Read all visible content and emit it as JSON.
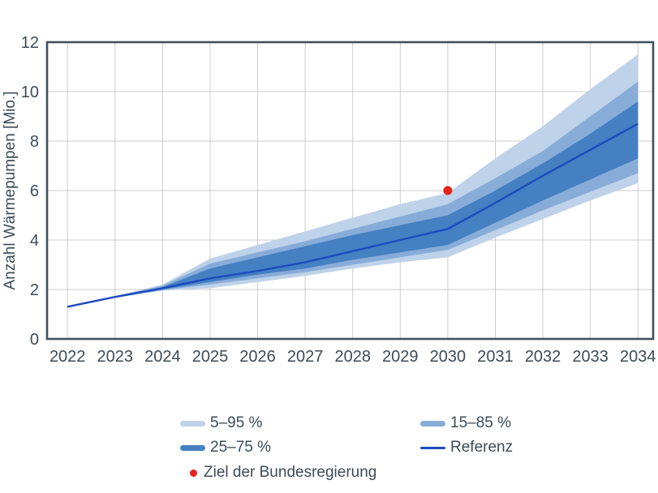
{
  "chart_data": {
    "type": "area",
    "subtype": "fan-chart",
    "title": "",
    "xlabel": "",
    "ylabel": "Anzahl Wärmepumpen [Mio.]",
    "x": [
      2022,
      2023,
      2024,
      2025,
      2026,
      2027,
      2028,
      2029,
      2030,
      2031,
      2032,
      2033,
      2034
    ],
    "x_tick_labels": [
      "2022",
      "2023",
      "2024",
      "2025",
      "2026",
      "2027",
      "2028",
      "2029",
      "2030",
      "2031",
      "2032",
      "2033",
      "2034"
    ],
    "y_ticks": [
      0,
      2,
      4,
      6,
      8,
      10,
      12
    ],
    "xlim": [
      2021.57,
      2034.32
    ],
    "ylim": [
      0,
      12
    ],
    "grid": true,
    "legend_position": "bottom",
    "bands": [
      {
        "name": "5–95 %",
        "color": "#bed2e9",
        "upper": [
          1.3,
          1.73,
          2.2,
          3.25,
          3.8,
          4.35,
          4.9,
          5.45,
          5.9,
          7.3,
          8.6,
          10.1,
          11.5
        ],
        "lower": [
          1.3,
          1.66,
          1.95,
          2.05,
          2.3,
          2.55,
          2.85,
          3.1,
          3.3,
          4.1,
          4.85,
          5.6,
          6.3
        ]
      },
      {
        "name": "15–85 %",
        "color": "#88acd8",
        "upper": [
          1.3,
          1.72,
          2.15,
          3.05,
          3.5,
          3.95,
          4.45,
          4.95,
          5.45,
          6.5,
          7.6,
          9.0,
          10.4
        ],
        "lower": [
          1.3,
          1.67,
          1.97,
          2.2,
          2.45,
          2.7,
          3.0,
          3.3,
          3.6,
          4.4,
          5.2,
          5.95,
          6.7
        ]
      },
      {
        "name": "25–75 %",
        "color": "#4480c2",
        "upper": [
          1.3,
          1.71,
          2.1,
          2.85,
          3.3,
          3.75,
          4.2,
          4.6,
          5.0,
          6.0,
          7.1,
          8.3,
          9.6
        ],
        "lower": [
          1.3,
          1.68,
          2.0,
          2.3,
          2.6,
          2.85,
          3.2,
          3.5,
          3.8,
          4.7,
          5.6,
          6.45,
          7.3
        ]
      }
    ],
    "lines": [
      {
        "name": "Referenz",
        "color": "#1d4bbe",
        "width": 2.4,
        "values": [
          1.3,
          1.7,
          2.05,
          2.45,
          2.75,
          3.1,
          3.55,
          4.0,
          4.45,
          5.5,
          6.6,
          7.65,
          8.7
        ]
      }
    ],
    "points": [
      {
        "name": "Ziel der Bundesregierung",
        "x": 2030,
        "y": 6,
        "color": "#e8241c",
        "radius": 5.5
      }
    ]
  },
  "legend": {
    "items": [
      {
        "label": "5–95 %"
      },
      {
        "label": "15–85 %"
      },
      {
        "label": "25–75 %"
      },
      {
        "label": "Referenz"
      },
      {
        "label": "Ziel der Bundesregierung"
      }
    ]
  },
  "colors": {
    "band_light": "#bed2e9",
    "band_medium": "#88acd8",
    "band_dark": "#4480c2",
    "reference_line": "#1d4bbe",
    "target_dot": "#e8241c",
    "axis_text": "#3d4c56",
    "axis_border": "#42525d",
    "gridline": "#cccccc"
  }
}
